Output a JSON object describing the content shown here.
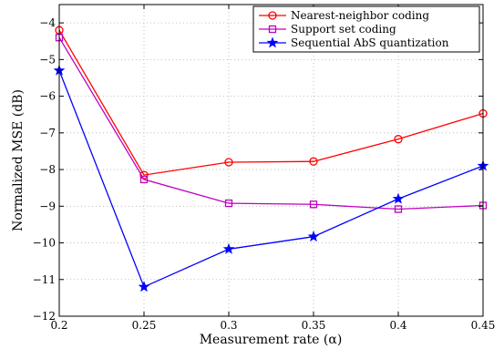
{
  "chart_data": {
    "type": "line",
    "xlabel": "Measurement rate (α)",
    "ylabel": "Normalized MSE (dB)",
    "xlim": [
      0.2,
      0.45
    ],
    "ylim": [
      -12,
      -3.5
    ],
    "grid": true,
    "legend_position": "top-right",
    "x": [
      0.2,
      0.25,
      0.3,
      0.35,
      0.4,
      0.45
    ],
    "x_tick_labels": [
      "0.2",
      "0.25",
      "0.3",
      "0.35",
      "0.4",
      "0.45"
    ],
    "y_ticks": [
      -12,
      -11,
      -10,
      -9,
      -8,
      -7,
      -6,
      -5,
      -4
    ],
    "y_tick_labels": [
      "−12",
      "−11",
      "−10",
      "−9",
      "−8",
      "−7",
      "−6",
      "−5",
      "−4"
    ],
    "series": [
      {
        "name": "Nearest-neighbor coding",
        "color": "#ff0000",
        "marker": "circle",
        "values": [
          -4.2,
          -8.15,
          -7.8,
          -7.78,
          -7.17,
          -6.47
        ]
      },
      {
        "name": "Support set coding",
        "color": "#bf00bf",
        "marker": "square",
        "values": [
          -4.4,
          -8.27,
          -8.92,
          -8.95,
          -9.08,
          -8.98
        ]
      },
      {
        "name": "Sequential AbS quantization",
        "color": "#0000ff",
        "marker": "star",
        "values": [
          -5.3,
          -11.2,
          -10.17,
          -9.83,
          -8.8,
          -7.9
        ]
      }
    ]
  }
}
